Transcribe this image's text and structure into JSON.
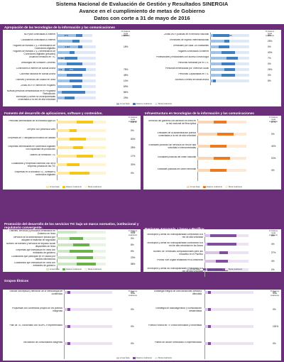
{
  "header": {
    "title": "Sistema Nacional de Evaluación de Gestión y Resultados SINERGIA",
    "subtitle": "Avance en el cumplimiento de metas de Gobierno",
    "date": "Datos con corte a 31 de mayo de 2016"
  },
  "colors": {
    "linea_base": "#9ec3e6",
    "avance": "#3d7fc1",
    "meta": "#dfe9f5",
    "yellow_light": "#fde9a3",
    "yellow": "#f5c518",
    "orange_light": "#f9d6b5",
    "orange": "#ec7a20",
    "green_light": "#cfe6c6",
    "green": "#6ab04c",
    "purple_light": "#d8c6e4",
    "purple": "#7e4fa0",
    "frame": "#6b2f7a"
  },
  "legend_labels": [
    "Línea base",
    "Avance cuatrienio",
    "Meta cuatrienio"
  ],
  "pct_header": "% Avance meta cuatrienio",
  "chart_data": [
    {
      "type": "bar",
      "title": "Apropiación de las tecnologías de la información y las comunicaciones",
      "theme": "blue",
      "items": [
        {
          "label": "Mi-PyMe conectadas a Internet",
          "base": "37%",
          "avance": "",
          "meta": "70,00%",
          "base_v": 37,
          "avance_v": 50,
          "meta_v": 70,
          "pct": "64%"
        },
        {
          "label": "Ciudadanos conectados a Internet",
          "base": "",
          "avance": "",
          "meta": "",
          "base_v": 30,
          "avance_v": 45,
          "meta_v": 70,
          "pct": ""
        },
        {
          "label": "Hogares de estratos 1 y 2 beneficiarios de Conexiones digitales",
          "base": "4.118",
          "avance": "1.000",
          "meta": "7.571",
          "base_v": 41,
          "avance_v": 50,
          "meta_v": 76,
          "pct": "18%"
        },
        {
          "label": "Hogares de estratos 1 y 2 beneficiarios de Conexiones digitales (privados)",
          "base": "",
          "avance": "",
          "meta": "",
          "base_v": 25,
          "avance_v": 35,
          "meta_v": 76,
          "pct": ""
        },
        {
          "label": "Usuarios formados en TIC",
          "base": "73.888",
          "avance": "",
          "meta": "",
          "base_v": 15,
          "avance_v": 40,
          "meta_v": 76,
          "pct": ""
        },
        {
          "label": "Descargas del Software Convertic",
          "base": "",
          "avance": "",
          "meta": "",
          "base_v": 20,
          "avance_v": 50,
          "meta_v": 76,
          "pct": ""
        },
        {
          "label": "Conexiones a internet de Banda Ancha",
          "base": "3,9",
          "avance": "15,5",
          "meta": "27",
          "base_v": 15,
          "avance_v": 57,
          "meta_v": 76,
          "pct": "75%"
        },
        {
          "label": "Colombia nacional en Banda Ancha",
          "base": "",
          "avance": "",
          "meta": "",
          "base_v": 20,
          "avance_v": 50,
          "meta_v": 76,
          "pct": "48%"
        },
        {
          "label": "Trámites y servicios del Estado en línea",
          "base": "",
          "avance": "",
          "meta": "",
          "base_v": 25,
          "avance_v": 50,
          "meta_v": 76,
          "pct": "10%"
        },
        {
          "label": "Zonas Wi-Fi e Internet en Hogares",
          "base": "",
          "avance": "",
          "meta": "",
          "base_v": 30,
          "avance_v": 48,
          "meta_v": 76,
          "pct": "69%"
        },
        {
          "label": "Nuevas personas sensibilizadas en el Programa Redvolución",
          "base": "",
          "avance": "",
          "meta": "601.000",
          "base_v": 10,
          "avance_v": 55,
          "meta_v": 76,
          "pct": "86%"
        },
        {
          "label": "Municipios y Áreas No Municipalizadas conectados a la red de alta velocidad",
          "base": "",
          "avance": "",
          "meta": "",
          "base_v": 15,
          "avance_v": 35,
          "meta_v": 76,
          "pct": "29%"
        }
      ],
      "items_right": [
        {
          "label": "Zonas Wi-Fi públicas en el territorio nacional",
          "base": "",
          "avance": "",
          "meta": "1.000",
          "base_v": 5,
          "avance_v": 35,
          "meta_v": 70,
          "pct": "0%"
        },
        {
          "label": "Terminales de Ingreso Interinstitucional",
          "base": "",
          "avance": "",
          "meta": "",
          "base_v": 25,
          "avance_v": 35,
          "meta_v": 70,
          "pct": "25%"
        },
        {
          "label": "Terminales por cada 100 habitantes",
          "base": "",
          "avance": "",
          "meta": "",
          "base_v": 15,
          "avance_v": 35,
          "meta_v": 70,
          "pct": "0%"
        },
        {
          "label": "Hogares conectados a internet",
          "base": "",
          "avance": "",
          "meta": "",
          "base_v": 20,
          "avance_v": 45,
          "meta_v": 70,
          "pct": "40%"
        },
        {
          "label": "Profesionales y estudiantes con acceso a tecnología",
          "base": "",
          "avance": "",
          "meta": "",
          "base_v": 30,
          "avance_v": 50,
          "meta_v": 70,
          "pct": "7%"
        },
        {
          "label": "Personas formadas por el CTL",
          "base": "",
          "avance": "",
          "meta": "",
          "base_v": 20,
          "avance_v": 45,
          "meta_v": 70,
          "pct": "0%"
        },
        {
          "label": "Personas beneficiadas por Telefonía Social",
          "base": "",
          "avance": "",
          "meta": "",
          "base_v": 25,
          "avance_v": 45,
          "meta_v": 70,
          "pct": "26%"
        },
        {
          "label": "Personas Capacitadas en TIC",
          "base": "",
          "avance": "",
          "meta": "",
          "base_v": 20,
          "avance_v": 45,
          "meta_v": 70,
          "pct": "0%"
        },
        {
          "label": "Accesos a redes de banda ancha",
          "base": "",
          "avance": "",
          "meta": "",
          "base_v": 5,
          "avance_v": 10,
          "meta_v": 70,
          "pct": "5%"
        }
      ]
    },
    {
      "type": "bar",
      "title": "Fomento del desarrollo de aplicaciones, software y contenidos.",
      "theme": "yellow",
      "items": [
        {
          "label": "Personas beneficiadas de la Iniciativa Apps.co",
          "base": "",
          "avance": "",
          "meta": "",
          "base_v": 30,
          "avance_v": 55,
          "meta_v": 75,
          "pct": "100%"
        },
        {
          "label": "MiPyme con presencia Web",
          "base": "",
          "avance": "",
          "meta": "",
          "base_v": 20,
          "avance_v": 30,
          "meta_v": 75,
          "pct": "0%"
        },
        {
          "label": "Empresas de TI adoptando modelos de calidad",
          "base": "",
          "avance": "",
          "meta": "",
          "base_v": 20,
          "avance_v": 45,
          "meta_v": 75,
          "pct": "50%"
        },
        {
          "label": "Empresas beneficiarias en contenidos digitales con capacidad de producción",
          "base": "",
          "avance": "",
          "meta": "",
          "base_v": 25,
          "avance_v": 40,
          "meta_v": 75,
          "pct": "28%"
        },
        {
          "label": "Talleres de formación TIC",
          "base": "",
          "avance": "",
          "meta": "",
          "base_v": 30,
          "avance_v": 55,
          "meta_v": 75,
          "pct": "17%"
        },
        {
          "label": "Ciudadanos y empresas haciendo uso de la empresa privada de las TIC",
          "base": "",
          "avance": "",
          "meta": "",
          "base_v": 15,
          "avance_v": 35,
          "meta_v": 75,
          "pct": "30%"
        },
        {
          "label": "Empresas en la industria TIC, software y contenidos digitales",
          "base": "",
          "avance": "",
          "meta": "",
          "base_v": 20,
          "avance_v": 50,
          "meta_v": 75,
          "pct": "0%"
        }
      ]
    },
    {
      "type": "bar",
      "title": "Infraestructura en tecnologías de la información y las comunicaciones",
      "theme": "orange",
      "items": [
        {
          "label": "Servicios del gobierno con atención en línea en la red nacional de fibra óptica",
          "base": "",
          "avance": "",
          "meta": "",
          "base_v": 25,
          "avance_v": 45,
          "meta_v": 75,
          "pct": "27%"
        },
        {
          "label": "Entidades de la administración pública conectadas a la red de alta velocidad",
          "base": "",
          "avance": "",
          "meta": "",
          "base_v": 30,
          "avance_v": 55,
          "meta_v": 75,
          "pct": "0%"
        },
        {
          "label": "Entidades públicas con servicios de red de alta velocidad e interconectadas",
          "base": "",
          "avance": "",
          "meta": "",
          "base_v": 20,
          "avance_v": 45,
          "meta_v": 75,
          "pct": "44%"
        },
        {
          "label": "Entidades públicas del orden nacional",
          "base": "",
          "avance": "",
          "meta": "",
          "base_v": 25,
          "avance_v": 50,
          "meta_v": 75,
          "pct": "20%"
        },
        {
          "label": "Entidades públicas del orden territorial",
          "base": "",
          "avance": "",
          "meta": "",
          "base_v": 20,
          "avance_v": 45,
          "meta_v": 75,
          "pct": "0%"
        }
      ]
    },
    {
      "type": "bar",
      "title": "Promoción del desarrollo de los servicios TIC bajo un marco normativo, institucional y regulatorio convergente.",
      "theme": "green",
      "items": [
        {
          "label": "Trámites, servicios y productos certificados en Gobierno en línea",
          "base": "",
          "avance": "",
          "meta": "",
          "base_v": 30,
          "avance_v": 30,
          "meta_v": 75,
          "pct": "13%"
        },
        {
          "label": "Servicios de la administración pública que adoptan el estándar de seguridad",
          "base": "",
          "avance": "",
          "meta": "",
          "base_v": 20,
          "avance_v": 40,
          "meta_v": 75,
          "pct": "0%"
        },
        {
          "label": "Número de trámites y servicios de impacto social disponibles en línea",
          "base": "",
          "avance": "",
          "meta": "",
          "base_v": 25,
          "avance_v": 50,
          "meta_v": 75,
          "pct": "8%"
        },
        {
          "label": "Empresas que interactúan en línea con entidades de gobierno",
          "base": "",
          "avance": "",
          "meta": "",
          "base_v": 20,
          "avance_v": 55,
          "meta_v": 75,
          "pct": "6%"
        },
        {
          "label": "Ciudadanos que participan en el Estado por medios electrónicos",
          "base": "",
          "avance": "",
          "meta": "",
          "base_v": 30,
          "avance_v": 55,
          "meta_v": 75,
          "pct": "23%"
        },
        {
          "label": "Ciudadanos que interactúan en línea con entidades de gobierno",
          "base": "",
          "avance": "",
          "meta": "",
          "base_v": 30,
          "avance_v": 60,
          "meta_v": 75,
          "pct": "58%"
        }
      ]
    },
    {
      "type": "bar",
      "title": "Regiones Amazonía, Llanos y Pacífico",
      "theme": "purple",
      "items": [
        {
          "label": "Municipios y Áreas No Municipalizadas conectados a la red de alta velocidad",
          "base": "",
          "avance": "",
          "meta": "",
          "base_v": 10,
          "avance_v": 55,
          "meta_v": 75,
          "pct": "0%"
        },
        {
          "label": "Municipios y Áreas No Municipalizadas conectados a la red de alta velocidad en los llanos",
          "base": "",
          "avance": "",
          "meta": "",
          "base_v": 5,
          "avance_v": 55,
          "meta_v": 75,
          "pct": "0%"
        },
        {
          "label": "Número de Terminales computacionales para uso educativo en el Pacífico",
          "base": "",
          "avance": "",
          "meta": "",
          "base_v": 25,
          "avance_v": 40,
          "meta_v": 75,
          "pct": "27%"
        },
        {
          "label": "Puntos Vive Digital instalados en la Amazonía",
          "base": "",
          "avance": "",
          "meta": "",
          "base_v": 20,
          "avance_v": 40,
          "meta_v": 75,
          "pct": "0%"
        },
        {
          "label": "Municipios y Áreas No Municipalizadas conectados a la red de alta velocidad",
          "base": "",
          "avance": "",
          "meta": "",
          "base_v": 5,
          "avance_v": 40,
          "meta_v": 75,
          "pct": "0%"
        }
      ]
    },
    {
      "type": "bar",
      "title": "Grupos Étnicos",
      "theme": "purple",
      "items": [
        {
          "label": "Estudio conceptual y definición de la metodología de contenidos",
          "base": "",
          "avance": "",
          "meta": "",
          "base_v": 5,
          "avance_v": 10,
          "meta_v": 75,
          "pct": "0%"
        },
        {
          "label": "Propuestas con contenidos propios de los pueblos indígenas",
          "base": "",
          "avance": "",
          "meta": "",
          "base_v": 5,
          "avance_v": 10,
          "meta_v": 75,
          "pct": "0%"
        },
        {
          "label": "Plan de TIC concertado con la MPC e implementado",
          "base": "",
          "avance": "",
          "meta": "",
          "base_v": 5,
          "avance_v": 10,
          "meta_v": 75,
          "pct": "0%"
        },
        {
          "label": "Vinculación de comunidades indígenas",
          "base": "",
          "avance": "",
          "meta": "",
          "base_v": 5,
          "avance_v": 10,
          "meta_v": 75,
          "pct": "0%"
        }
      ],
      "items_right": [
        {
          "label": "Estrategia integral de comunicaciones creada y difundida",
          "base": "",
          "avance": "",
          "meta": "",
          "base_v": 5,
          "avance_v": 10,
          "meta_v": 75,
          "pct": "0%"
        },
        {
          "label": "Estrategia de autodiagnóstico y consolidación desarrollada",
          "base": "",
          "avance": "",
          "meta": "",
          "base_v": 5,
          "avance_v": 10,
          "meta_v": 75,
          "pct": "0%"
        },
        {
          "label": "Política Pública de TV Étnica formulada y concertada",
          "base": "",
          "avance": "",
          "meta": "",
          "base_v": 5,
          "avance_v": 10,
          "meta_v": 75,
          "pct": "100%"
        },
        {
          "label": "Planes de acción formulados e implementados",
          "base": "",
          "avance": "",
          "meta": "",
          "base_v": 5,
          "avance_v": 10,
          "meta_v": 75,
          "pct": "0%"
        }
      ]
    }
  ]
}
